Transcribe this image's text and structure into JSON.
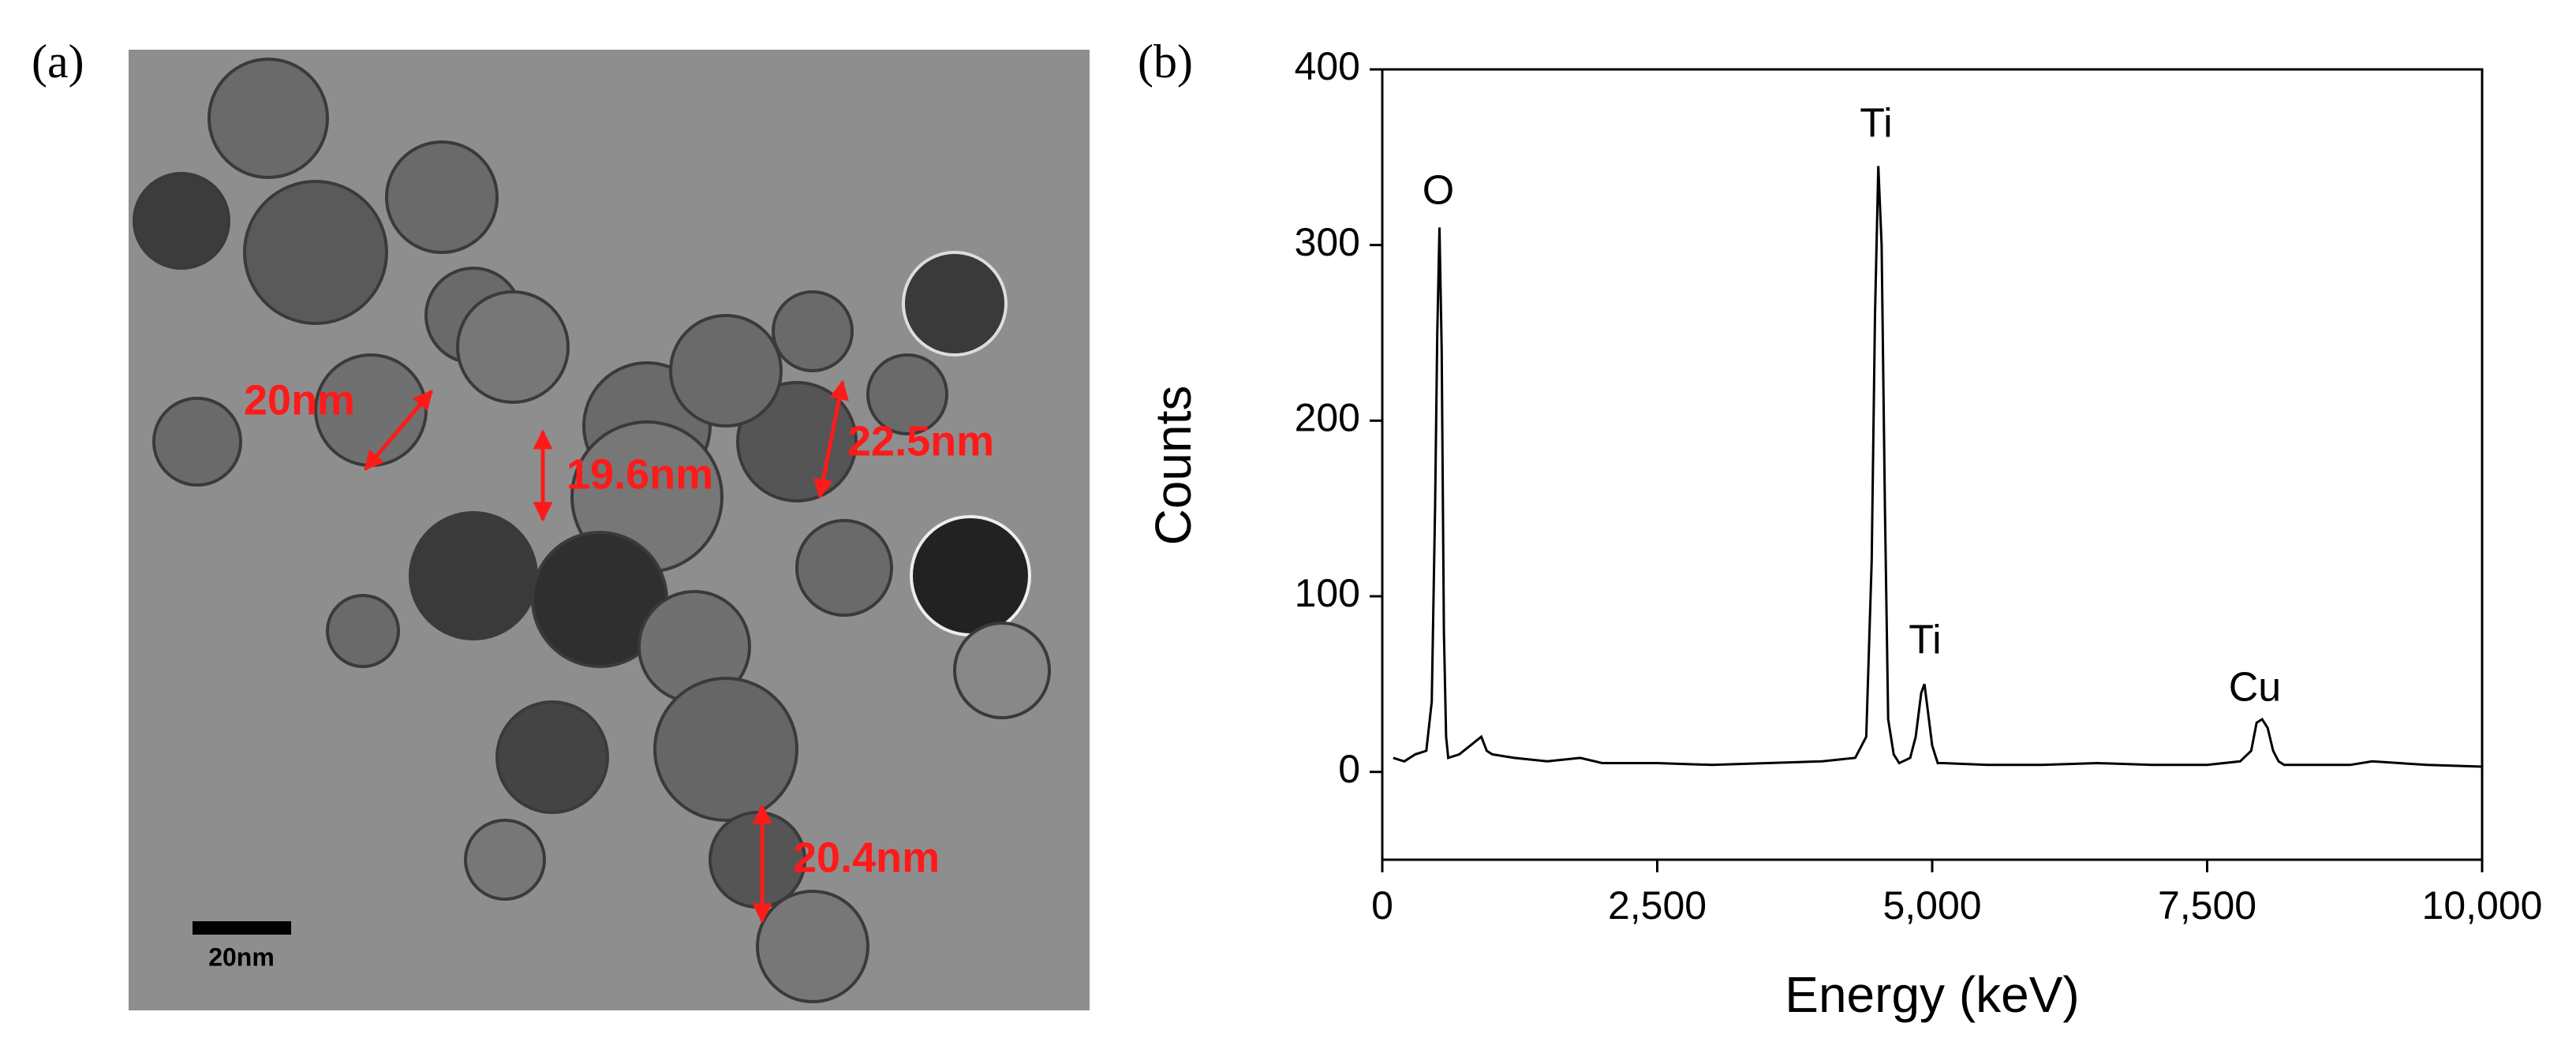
{
  "panel_a": {
    "label": "(a)",
    "scale_bar": "20nm",
    "measurements": [
      "20nm",
      "19.6nm",
      "22.5nm",
      "20.4nm"
    ]
  },
  "chart_data": {
    "type": "line",
    "label": "(b)",
    "x_label": "Energy (keV)",
    "y_label": "Counts",
    "x": [
      100,
      200,
      300,
      400,
      450,
      480,
      500,
      520,
      540,
      560,
      580,
      600,
      700,
      800,
      900,
      950,
      1000,
      1200,
      1500,
      1800,
      2000,
      2500,
      3000,
      3500,
      4000,
      4300,
      4400,
      4450,
      4480,
      4510,
      4540,
      4570,
      4600,
      4650,
      4700,
      4800,
      4850,
      4900,
      4930,
      4960,
      5000,
      5050,
      5100,
      5500,
      6000,
      6500,
      7000,
      7500,
      7800,
      7900,
      7950,
      8000,
      8050,
      8100,
      8150,
      8200,
      8400,
      8800,
      9000,
      9500,
      10000
    ],
    "series": [
      {
        "color": "#000000",
        "values": [
          8,
          6,
          10,
          12,
          40,
          150,
          250,
          310,
          240,
          80,
          20,
          8,
          10,
          15,
          20,
          12,
          10,
          8,
          6,
          8,
          5,
          5,
          4,
          5,
          6,
          8,
          20,
          120,
          260,
          345,
          300,
          150,
          30,
          10,
          5,
          8,
          20,
          45,
          50,
          35,
          15,
          5,
          5,
          4,
          4,
          5,
          4,
          4,
          6,
          12,
          28,
          30,
          25,
          12,
          6,
          4,
          4,
          4,
          6,
          4,
          3
        ]
      }
    ],
    "annotations": [
      "O",
      "Ti",
      "Ti",
      "Cu"
    ],
    "xlim": [
      0,
      10000
    ],
    "xticks": [
      0,
      {
        "value": 2500,
        "label": "2,500"
      },
      {
        "value": 5000,
        "label": "5,000"
      },
      {
        "value": 7500,
        "label": "7,500"
      },
      {
        "value": 10000,
        "label": "10,000"
      }
    ],
    "ylim": [
      -50,
      400
    ],
    "yticks": [
      0,
      100,
      200,
      300,
      400
    ]
  }
}
